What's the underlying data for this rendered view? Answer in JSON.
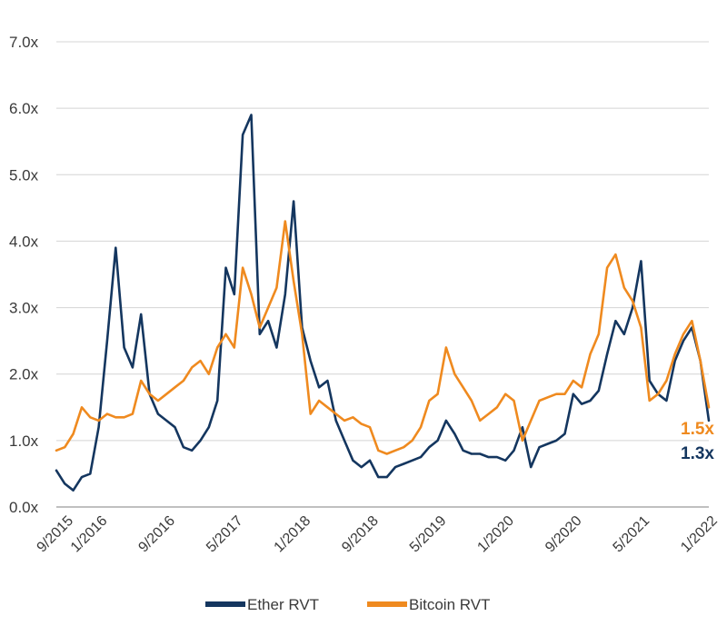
{
  "chart_data": {
    "type": "line",
    "y_tick_labels": [
      "0.0x",
      "1.0x",
      "2.0x",
      "3.0x",
      "4.0x",
      "5.0x",
      "6.0x",
      "7.0x"
    ],
    "y_tick_values": [
      0,
      1,
      2,
      3,
      4,
      5,
      6,
      7
    ],
    "ylim": [
      0,
      7
    ],
    "x_tick_labels": [
      "9/2015",
      "1/2016",
      "9/2016",
      "5/2017",
      "1/2018",
      "9/2018",
      "5/2019",
      "1/2020",
      "9/2020",
      "5/2021",
      "1/2022"
    ],
    "x_tick_values": [
      "2015-09",
      "2016-01",
      "2016-09",
      "2017-05",
      "2018-01",
      "2018-09",
      "2019-05",
      "2020-01",
      "2020-09",
      "2021-05",
      "2022-01"
    ],
    "xlim": [
      "2015-08",
      "2022-01"
    ],
    "grid": true,
    "legend_position": "bottom",
    "series": [
      {
        "name": "Ether RVT",
        "color": "#14365f",
        "end_label": "1.3x",
        "points": [
          [
            "2015-08",
            0.55
          ],
          [
            "2015-09",
            0.35
          ],
          [
            "2015-10",
            0.25
          ],
          [
            "2015-11",
            0.45
          ],
          [
            "2015-12",
            0.5
          ],
          [
            "2016-01",
            1.2
          ],
          [
            "2016-02",
            2.5
          ],
          [
            "2016-03",
            3.9
          ],
          [
            "2016-04",
            2.4
          ],
          [
            "2016-05",
            2.1
          ],
          [
            "2016-06",
            2.9
          ],
          [
            "2016-07",
            1.7
          ],
          [
            "2016-08",
            1.4
          ],
          [
            "2016-09",
            1.3
          ],
          [
            "2016-10",
            1.2
          ],
          [
            "2016-11",
            0.9
          ],
          [
            "2016-12",
            0.85
          ],
          [
            "2017-01",
            1.0
          ],
          [
            "2017-02",
            1.2
          ],
          [
            "2017-03",
            1.6
          ],
          [
            "2017-04",
            3.6
          ],
          [
            "2017-05",
            3.2
          ],
          [
            "2017-06",
            5.6
          ],
          [
            "2017-07",
            5.9
          ],
          [
            "2017-08",
            2.6
          ],
          [
            "2017-09",
            2.8
          ],
          [
            "2017-10",
            2.4
          ],
          [
            "2017-11",
            3.2
          ],
          [
            "2017-12",
            4.6
          ],
          [
            "2018-01",
            2.7
          ],
          [
            "2018-02",
            2.2
          ],
          [
            "2018-03",
            1.8
          ],
          [
            "2018-04",
            1.9
          ],
          [
            "2018-05",
            1.3
          ],
          [
            "2018-06",
            1.0
          ],
          [
            "2018-07",
            0.7
          ],
          [
            "2018-08",
            0.6
          ],
          [
            "2018-09",
            0.7
          ],
          [
            "2018-10",
            0.45
          ],
          [
            "2018-11",
            0.45
          ],
          [
            "2018-12",
            0.6
          ],
          [
            "2019-01",
            0.65
          ],
          [
            "2019-02",
            0.7
          ],
          [
            "2019-03",
            0.75
          ],
          [
            "2019-04",
            0.9
          ],
          [
            "2019-05",
            1.0
          ],
          [
            "2019-06",
            1.3
          ],
          [
            "2019-07",
            1.1
          ],
          [
            "2019-08",
            0.85
          ],
          [
            "2019-09",
            0.8
          ],
          [
            "2019-10",
            0.8
          ],
          [
            "2019-11",
            0.75
          ],
          [
            "2019-12",
            0.75
          ],
          [
            "2020-01",
            0.7
          ],
          [
            "2020-02",
            0.85
          ],
          [
            "2020-03",
            1.2
          ],
          [
            "2020-04",
            0.6
          ],
          [
            "2020-05",
            0.9
          ],
          [
            "2020-06",
            0.95
          ],
          [
            "2020-07",
            1.0
          ],
          [
            "2020-08",
            1.1
          ],
          [
            "2020-09",
            1.7
          ],
          [
            "2020-10",
            1.55
          ],
          [
            "2020-11",
            1.6
          ],
          [
            "2020-12",
            1.75
          ],
          [
            "2021-01",
            2.3
          ],
          [
            "2021-02",
            2.8
          ],
          [
            "2021-03",
            2.6
          ],
          [
            "2021-04",
            3.0
          ],
          [
            "2021-05",
            3.7
          ],
          [
            "2021-06",
            1.9
          ],
          [
            "2021-07",
            1.7
          ],
          [
            "2021-08",
            1.6
          ],
          [
            "2021-09",
            2.2
          ],
          [
            "2021-10",
            2.5
          ],
          [
            "2021-11",
            2.7
          ],
          [
            "2021-12",
            2.2
          ],
          [
            "2022-01",
            1.3
          ]
        ]
      },
      {
        "name": "Bitcoin RVT",
        "color": "#ef8a1f",
        "end_label": "1.5x",
        "points": [
          [
            "2015-08",
            0.85
          ],
          [
            "2015-09",
            0.9
          ],
          [
            "2015-10",
            1.1
          ],
          [
            "2015-11",
            1.5
          ],
          [
            "2015-12",
            1.35
          ],
          [
            "2016-01",
            1.3
          ],
          [
            "2016-02",
            1.4
          ],
          [
            "2016-03",
            1.35
          ],
          [
            "2016-04",
            1.35
          ],
          [
            "2016-05",
            1.4
          ],
          [
            "2016-06",
            1.9
          ],
          [
            "2016-07",
            1.7
          ],
          [
            "2016-08",
            1.6
          ],
          [
            "2016-09",
            1.7
          ],
          [
            "2016-10",
            1.8
          ],
          [
            "2016-11",
            1.9
          ],
          [
            "2016-12",
            2.1
          ],
          [
            "2017-01",
            2.2
          ],
          [
            "2017-02",
            2.0
          ],
          [
            "2017-03",
            2.4
          ],
          [
            "2017-04",
            2.6
          ],
          [
            "2017-05",
            2.4
          ],
          [
            "2017-06",
            3.6
          ],
          [
            "2017-07",
            3.2
          ],
          [
            "2017-08",
            2.7
          ],
          [
            "2017-09",
            3.0
          ],
          [
            "2017-10",
            3.3
          ],
          [
            "2017-11",
            4.3
          ],
          [
            "2017-12",
            3.4
          ],
          [
            "2018-01",
            2.6
          ],
          [
            "2018-02",
            1.4
          ],
          [
            "2018-03",
            1.6
          ],
          [
            "2018-04",
            1.5
          ],
          [
            "2018-05",
            1.4
          ],
          [
            "2018-06",
            1.3
          ],
          [
            "2018-07",
            1.35
          ],
          [
            "2018-08",
            1.25
          ],
          [
            "2018-09",
            1.2
          ],
          [
            "2018-10",
            0.85
          ],
          [
            "2018-11",
            0.8
          ],
          [
            "2018-12",
            0.85
          ],
          [
            "2019-01",
            0.9
          ],
          [
            "2019-02",
            1.0
          ],
          [
            "2019-03",
            1.2
          ],
          [
            "2019-04",
            1.6
          ],
          [
            "2019-05",
            1.7
          ],
          [
            "2019-06",
            2.4
          ],
          [
            "2019-07",
            2.0
          ],
          [
            "2019-08",
            1.8
          ],
          [
            "2019-09",
            1.6
          ],
          [
            "2019-10",
            1.3
          ],
          [
            "2019-11",
            1.4
          ],
          [
            "2019-12",
            1.5
          ],
          [
            "2020-01",
            1.7
          ],
          [
            "2020-02",
            1.6
          ],
          [
            "2020-03",
            1.0
          ],
          [
            "2020-04",
            1.3
          ],
          [
            "2020-05",
            1.6
          ],
          [
            "2020-06",
            1.65
          ],
          [
            "2020-07",
            1.7
          ],
          [
            "2020-08",
            1.7
          ],
          [
            "2020-09",
            1.9
          ],
          [
            "2020-10",
            1.8
          ],
          [
            "2020-11",
            2.3
          ],
          [
            "2020-12",
            2.6
          ],
          [
            "2021-01",
            3.6
          ],
          [
            "2021-02",
            3.8
          ],
          [
            "2021-03",
            3.3
          ],
          [
            "2021-04",
            3.1
          ],
          [
            "2021-05",
            2.7
          ],
          [
            "2021-06",
            1.6
          ],
          [
            "2021-07",
            1.7
          ],
          [
            "2021-08",
            1.9
          ],
          [
            "2021-09",
            2.3
          ],
          [
            "2021-10",
            2.6
          ],
          [
            "2021-11",
            2.8
          ],
          [
            "2021-12",
            2.2
          ],
          [
            "2022-01",
            1.5
          ]
        ]
      }
    ]
  }
}
